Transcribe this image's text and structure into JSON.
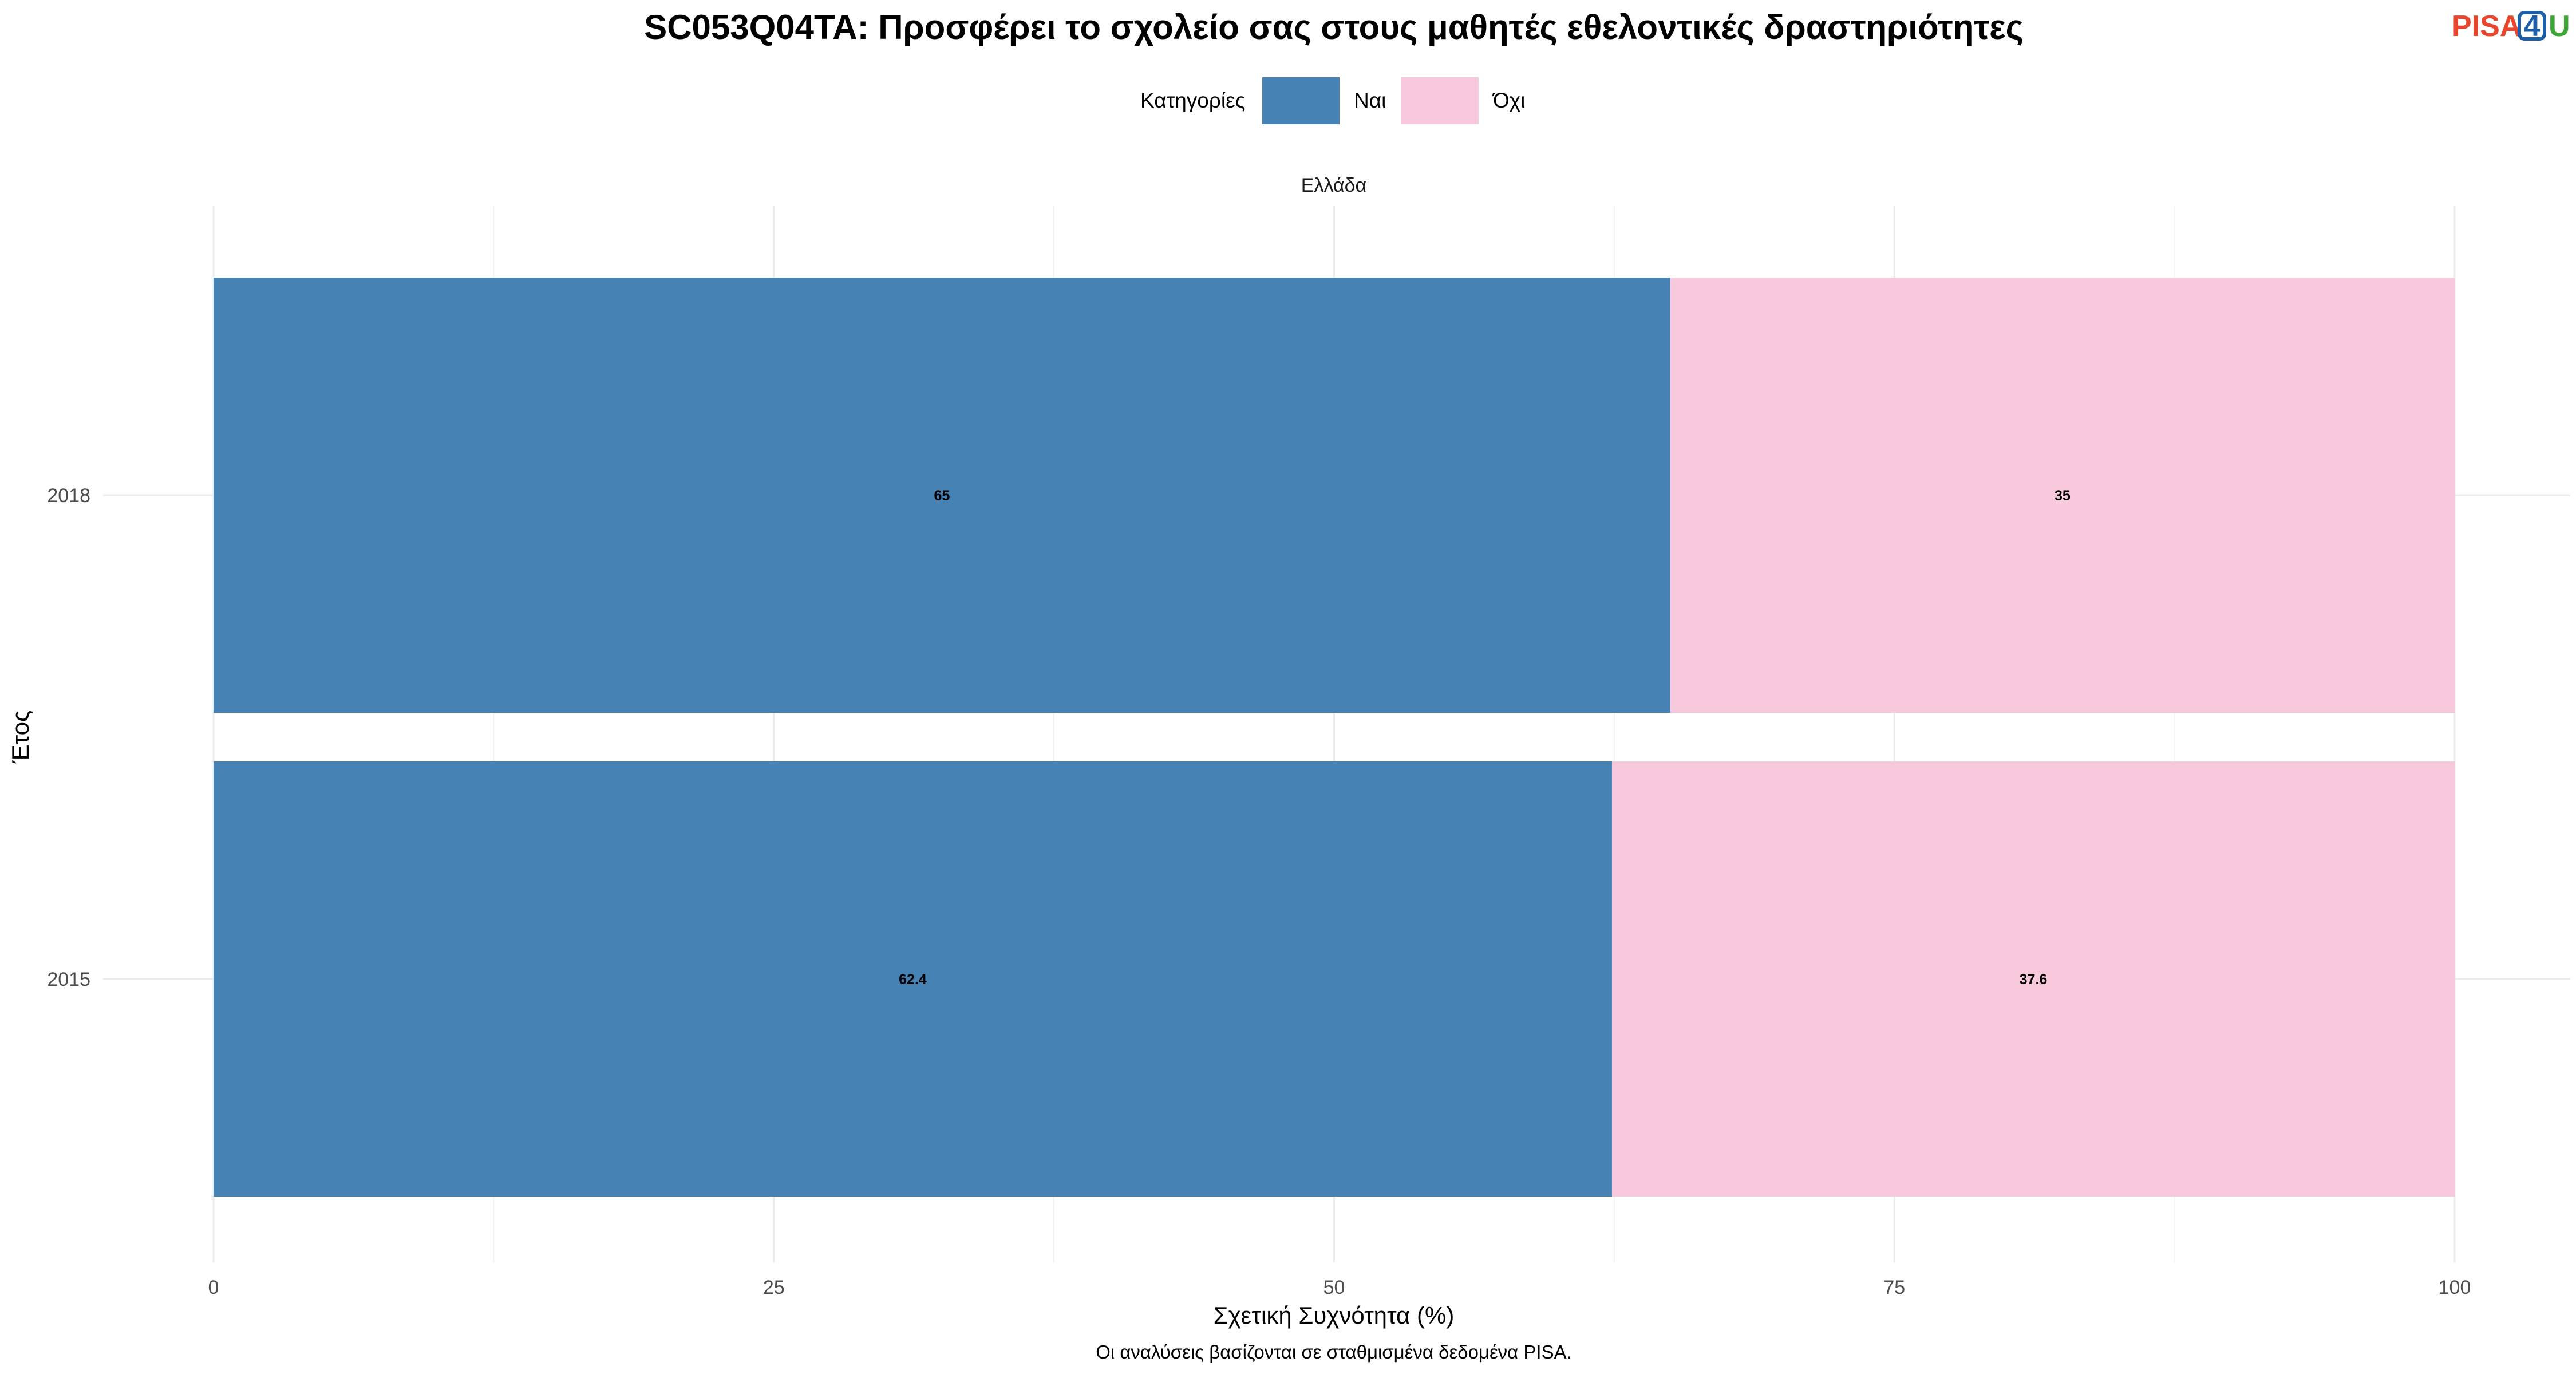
{
  "logo": {
    "part1": "PISA",
    "part2": "4",
    "part3": "U",
    "colors": {
      "pisa": "#e8452c",
      "four": "#1f5fa8",
      "u": "#3aa635"
    }
  },
  "legend": {
    "title": "Κατηγορίες",
    "position": "top"
  },
  "colors": {
    "nai": "#4682b4",
    "ochi": "#f8c8dc"
  },
  "chart_data": {
    "type": "bar",
    "orientation": "horizontal",
    "stacked": true,
    "title": "SC053Q04TA: Προσφέρει το σχολείο σας στους μαθητές εθελοντικές δραστηριότητες",
    "facet": "Ελλάδα",
    "categories": [
      "2018",
      "2015"
    ],
    "series": [
      {
        "name": "Ναι",
        "values": [
          65,
          62.4
        ],
        "labels": [
          "65",
          "62.4"
        ]
      },
      {
        "name": "Όχι",
        "values": [
          35,
          37.6
        ],
        "labels": [
          "35",
          "37.6"
        ]
      }
    ],
    "xlabel": "Σχετική Συχνότητα (%)",
    "ylabel": "Έτος",
    "xlim": [
      0,
      100
    ],
    "xticks": [
      "0",
      "25",
      "50",
      "75",
      "100"
    ],
    "caption": "Οι αναλύσεις βασίζονται σε σταθμισμένα δεδομένα PISA.",
    "grid": true
  }
}
